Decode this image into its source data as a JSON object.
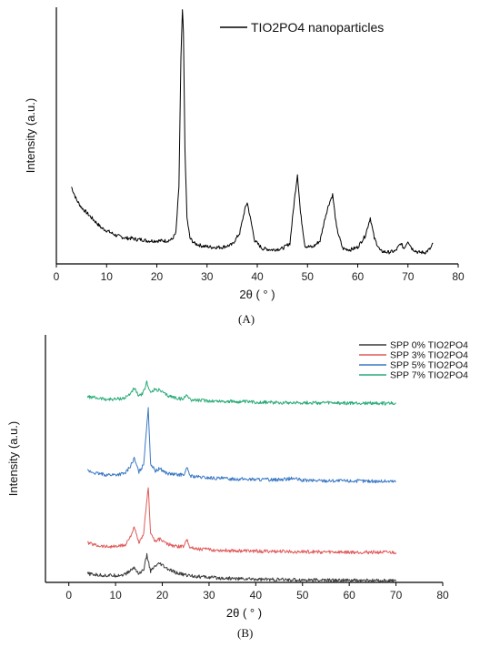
{
  "panels": {
    "a_label": "(A)",
    "b_label": "(B)"
  },
  "chart_data": [
    {
      "type": "line",
      "panel": "A",
      "xlabel": "2θ ( ° )",
      "ylabel": "Intensity (a.u.)",
      "xlim": [
        0,
        80
      ],
      "xticks": [
        0,
        10,
        20,
        30,
        40,
        50,
        60,
        70,
        80
      ],
      "ylim": [
        0,
        100
      ],
      "yticks_shown": false,
      "grid": false,
      "legend_position": "top-right",
      "series": [
        {
          "name": "TIO2PO4 nanoparticles",
          "color": "#000000",
          "x": [
            3,
            4,
            5,
            6,
            7,
            8,
            9,
            10,
            11,
            12,
            13,
            14,
            15,
            16,
            17,
            18,
            19,
            20,
            21,
            22,
            23,
            23.8,
            24.4,
            24.8,
            25.1,
            25.3,
            25.6,
            26,
            26.6,
            27.5,
            29,
            31,
            33,
            35,
            36.5,
            37.5,
            38,
            38.6,
            39.5,
            41,
            43,
            45,
            46.5,
            47.4,
            48,
            48.6,
            49.5,
            51,
            52.5,
            53.5,
            54.2,
            55,
            55.8,
            57,
            58.5,
            60,
            61.5,
            62.5,
            63.3,
            64.5,
            66,
            67.5,
            68.6,
            69.2,
            70,
            70.8,
            72,
            73.5,
            74.5,
            75
          ],
          "values": [
            30,
            25,
            22,
            20,
            18,
            16,
            14,
            13,
            12,
            11,
            10.5,
            10,
            10,
            9.5,
            9.5,
            9,
            9,
            9,
            9,
            9,
            9.5,
            12,
            30,
            80,
            99,
            90,
            45,
            18,
            10,
            8,
            7,
            6.5,
            6.5,
            7.5,
            12,
            21,
            24,
            18,
            9,
            6,
            5.5,
            6,
            8,
            25,
            35,
            20,
            7,
            6.5,
            9,
            18,
            23,
            27,
            14,
            6,
            5.5,
            6.5,
            11,
            18,
            10,
            5,
            4.5,
            5,
            8,
            6,
            9,
            6,
            4.5,
            4.5,
            6,
            8
          ]
        }
      ]
    },
    {
      "type": "line",
      "panel": "B",
      "xlabel": "2θ ( ° )",
      "ylabel": "Intensity (a.u.)",
      "xlim": [
        -5,
        80
      ],
      "xticks": [
        0,
        10,
        20,
        30,
        40,
        50,
        60,
        70,
        80
      ],
      "ylim": [
        0,
        100
      ],
      "yticks_shown": false,
      "grid": false,
      "legend_position": "top-right",
      "series": [
        {
          "name": "SPP 0% TIO2PO4",
          "color": "#3a3a3a",
          "x": [
            4,
            6,
            8,
            10,
            12,
            13,
            14,
            15,
            16,
            16.7,
            17.5,
            18.5,
            19.5,
            21,
            23,
            25,
            28,
            32,
            36,
            40,
            45,
            50,
            55,
            60,
            65,
            70
          ],
          "values": [
            3.5,
            3,
            2.8,
            2.8,
            3.2,
            4.5,
            6,
            3.5,
            5,
            11,
            4.5,
            6.5,
            7.5,
            5.5,
            3.8,
            3,
            2.3,
            1.8,
            1.5,
            1.3,
            1.1,
            1,
            0.9,
            0.8,
            0.7,
            0.6
          ]
        },
        {
          "name": "SPP 3% TIO2PO4",
          "color": "#e05a5a",
          "x": [
            4,
            6,
            8,
            10,
            12,
            13,
            14,
            15,
            16,
            16.6,
            17,
            17.5,
            18.5,
            19.5,
            21,
            23,
            24.5,
            25.3,
            26,
            28,
            32,
            36,
            40,
            45,
            50,
            55,
            60,
            65,
            70
          ],
          "values": [
            16,
            15,
            14.5,
            14.5,
            15,
            18,
            22,
            16,
            19,
            32,
            38,
            20,
            16.5,
            17.5,
            15.5,
            14.5,
            14.5,
            17.5,
            14,
            13.5,
            13,
            12.8,
            12.6,
            12.5,
            12.4,
            12.3,
            12.2,
            12.2,
            12.1
          ]
        },
        {
          "name": "SPP 5% TIO2PO4",
          "color": "#3a78c4",
          "x": [
            4,
            6,
            8,
            10,
            12,
            13,
            14,
            15,
            16,
            16.6,
            17,
            17.5,
            18.5,
            19.5,
            21,
            23,
            24.5,
            25.3,
            26,
            28,
            32,
            36,
            40,
            45,
            48,
            50,
            55,
            60,
            65,
            70
          ],
          "values": [
            45,
            44,
            43.5,
            43.5,
            44,
            46.5,
            50,
            44.5,
            47.5,
            62,
            70,
            48,
            45,
            46,
            44,
            43.5,
            43.5,
            46,
            43,
            42.5,
            42,
            41.8,
            41.6,
            41.5,
            42,
            41.2,
            41.1,
            41,
            40.9,
            40.8
          ]
        },
        {
          "name": "SPP 7% TIO2PO4",
          "color": "#2aab78",
          "x": [
            4,
            6,
            8,
            10,
            12,
            13,
            14,
            15,
            16,
            16.7,
            17.5,
            18.5,
            19.5,
            21,
            23,
            24.5,
            25.3,
            26,
            28,
            32,
            36,
            40,
            45,
            50,
            55,
            60,
            65,
            70
          ],
          "values": [
            75,
            74.5,
            74,
            74,
            74.5,
            76,
            78.5,
            75,
            77,
            81,
            76.5,
            78,
            77.5,
            75.5,
            74.5,
            74,
            76,
            73.8,
            73.5,
            73.2,
            73,
            72.8,
            72.7,
            72.6,
            72.5,
            72.4,
            72.4,
            72.3
          ]
        }
      ]
    }
  ]
}
